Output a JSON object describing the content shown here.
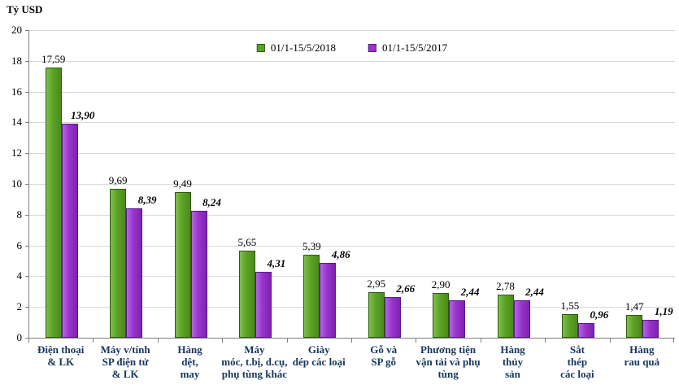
{
  "chart_data": {
    "type": "bar",
    "title": "",
    "ylabel": "Tỷ USD",
    "xlabel": "",
    "ylim": [
      0,
      20
    ],
    "ytick_step": 2,
    "yticks": [
      0,
      2,
      4,
      6,
      8,
      10,
      12,
      14,
      16,
      18,
      20
    ],
    "grid": true,
    "legend_position": "top-center",
    "categories": [
      "Điện thoại\n& LK",
      "Máy v/tính\nSP điện tử\n& LK",
      "Hàng\ndệt,\nmay",
      "Máy\nmóc, t.bị, d.cụ,\nphụ tùng khác",
      "Giày\ndép các loại",
      "Gỗ và\nSP gỗ",
      "Phương tiện\nvận tải và phụ\ntùng",
      "Hàng\nthủy\nsản",
      "Sắt\nthép\ncác loại",
      "Hàng\nrau quả"
    ],
    "series": [
      {
        "name": "01/1-15/5/2018",
        "color": "#5ca227",
        "values": [
          17.59,
          9.69,
          9.49,
          5.65,
          5.39,
          2.95,
          2.9,
          2.78,
          1.55,
          1.47
        ],
        "labels": [
          "17,59",
          "9,69",
          "9,49",
          "5,65",
          "5,39",
          "2,95",
          "2,90",
          "2,78",
          "1,55",
          "1,47"
        ]
      },
      {
        "name": "01/1-15/5/2017",
        "color": "#9933cc",
        "values": [
          13.9,
          8.39,
          8.24,
          4.31,
          4.86,
          2.66,
          2.44,
          2.44,
          0.96,
          1.19
        ],
        "labels": [
          "13,90",
          "8,39",
          "8,24",
          "4,31",
          "4,86",
          "2,66",
          "2,44",
          "2,44",
          "0,96",
          "1,19"
        ]
      }
    ]
  }
}
